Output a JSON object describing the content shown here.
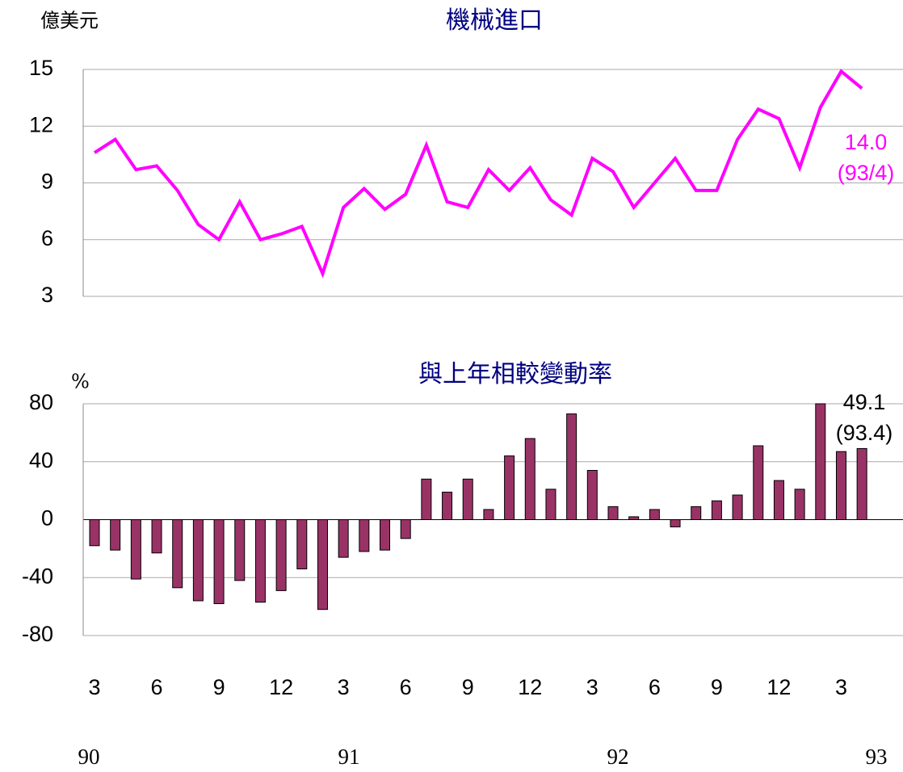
{
  "chart_data": [
    {
      "type": "line",
      "title": "機械進口",
      "y_label": "億美元",
      "series": [
        {
          "name": "機械進口",
          "color": "#ff00ff",
          "values": [
            10.6,
            11.3,
            9.7,
            9.9,
            8.6,
            6.8,
            6.0,
            8.0,
            6.0,
            6.3,
            6.7,
            4.2,
            7.7,
            8.7,
            7.6,
            8.4,
            11.0,
            8.0,
            7.7,
            9.7,
            8.6,
            9.8,
            8.1,
            7.3,
            10.3,
            9.6,
            7.7,
            9.0,
            10.3,
            8.6,
            8.6,
            11.3,
            12.9,
            12.4,
            9.8,
            13.0,
            14.9,
            14.0
          ]
        }
      ],
      "ylim": [
        3,
        15
      ],
      "yticks": [
        3,
        6,
        9,
        12,
        15
      ],
      "grid": true,
      "annotation": [
        "14.0",
        "(93/4)"
      ]
    },
    {
      "type": "bar",
      "title": "與上年相較變動率",
      "y_label": "%",
      "categories": [
        "3",
        null,
        null,
        "6",
        null,
        null,
        "9",
        null,
        null,
        "12",
        null,
        null,
        "3",
        null,
        null,
        "6",
        null,
        null,
        "9",
        null,
        null,
        "12",
        null,
        null,
        "3",
        null,
        null,
        "6",
        null,
        null,
        "9",
        null,
        null,
        "12",
        null,
        null,
        "3",
        null
      ],
      "series": [
        {
          "name": "與上年相較變動率",
          "color": "#993366",
          "values": [
            -18,
            -21,
            -41,
            -23,
            -47,
            -56,
            -58,
            -42,
            -57,
            -49,
            -34,
            -62,
            -26,
            -22,
            -21,
            -13,
            28,
            19,
            28,
            7,
            44,
            56,
            21,
            73,
            34,
            9,
            2,
            7,
            -5,
            9,
            13,
            17,
            51,
            27,
            21,
            80,
            47,
            49.1
          ]
        }
      ],
      "ylim": [
        -80,
        80
      ],
      "yticks": [
        -80,
        -40,
        0,
        40,
        80
      ],
      "grid": true,
      "annotation": [
        "49.1",
        "(93.4)"
      ],
      "year_labels": [
        "90",
        "91",
        "92",
        "93"
      ]
    }
  ]
}
